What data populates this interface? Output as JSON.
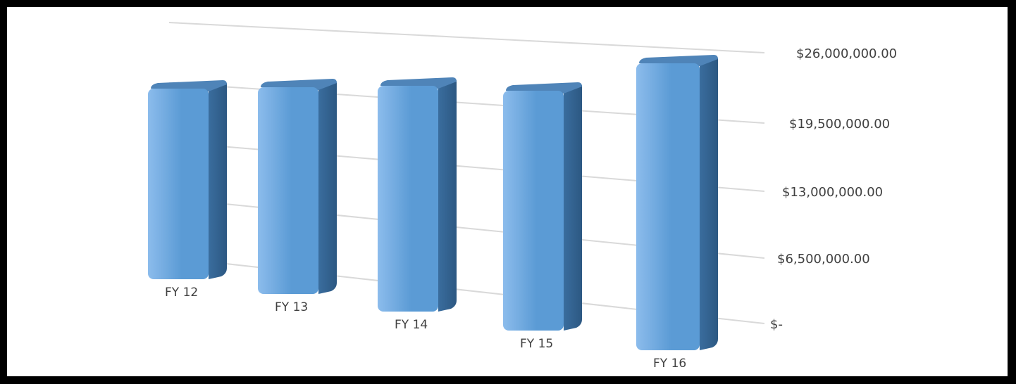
{
  "chart_data": {
    "type": "bar",
    "title": "",
    "xlabel": "",
    "ylabel": "",
    "categories": [
      "FY 12",
      "FY 13",
      "FY 14",
      "FY 15",
      "FY 16"
    ],
    "values": [
      22000000,
      22100000,
      23900000,
      23800000,
      29200000
    ],
    "ylim": [
      0,
      26000000
    ],
    "yticks": [
      {
        "value": 26000000,
        "label": "$26,000,000.00"
      },
      {
        "value": 19500000,
        "label": "$19,500,000.00"
      },
      {
        "value": 13000000,
        "label": "$13,000,000.00"
      },
      {
        "value": 6500000,
        "label": "$6,500,000.00"
      },
      {
        "value": 0,
        "label": "$-"
      }
    ],
    "grid": true,
    "legend": "none",
    "perspective": "3d-right-axis",
    "colors": {
      "bar_front": "#5b9bd5",
      "bar_front_light": "#8cbcec",
      "bar_side": "#3a6d9e",
      "bar_top": "#4f84b8",
      "gridline": "#d9d9d9",
      "background": "#ffffff",
      "frame": "#000000"
    }
  }
}
